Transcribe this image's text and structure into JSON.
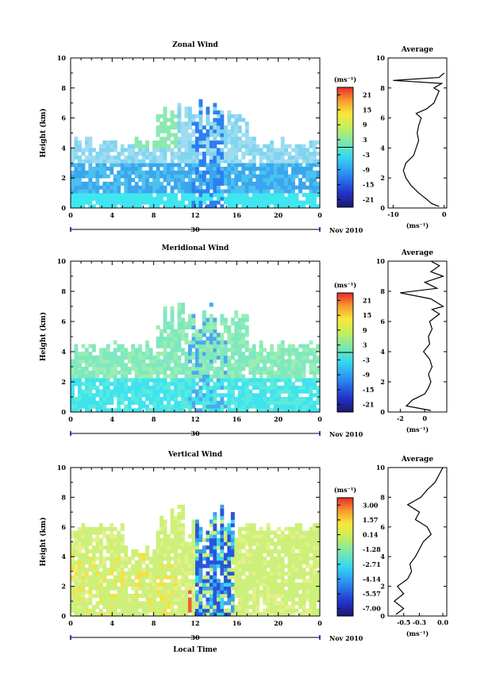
{
  "chart_data": [
    {
      "type": "heatmap",
      "title": "Zonal Wind",
      "ylabel": "Height (km)",
      "xlabel": "",
      "xlim": [
        0,
        24
      ],
      "ylim": [
        0,
        10
      ],
      "x_ticks": [
        "0",
        "4",
        "8",
        "12",
        "16",
        "20",
        "0"
      ],
      "y_ticks": [
        "0",
        "2",
        "4",
        "6",
        "8",
        "10"
      ],
      "date_label": "30",
      "month_label": "Nov 2010",
      "colorbar": {
        "unit": "(ms⁻¹)",
        "ticks": [
          "21",
          "15",
          "9",
          "3",
          "-3",
          "-9",
          "-15",
          "-21"
        ],
        "range": [
          -24,
          24
        ]
      },
      "average": {
        "title": "Average",
        "xlabel": "(ms⁻¹)",
        "x_ticks": [
          "-10",
          "0"
        ],
        "y_ticks": [
          "0",
          "2",
          "4",
          "6",
          "8",
          "10"
        ],
        "xlim": [
          -11,
          0.5
        ],
        "profile": [
          [
            0.1,
            -1
          ],
          [
            0.3,
            -2.5
          ],
          [
            0.6,
            -3.5
          ],
          [
            1.0,
            -5
          ],
          [
            1.5,
            -6.5
          ],
          [
            2.0,
            -7.5
          ],
          [
            2.5,
            -8
          ],
          [
            3.0,
            -7.5
          ],
          [
            3.5,
            -6
          ],
          [
            4.0,
            -5.5
          ],
          [
            4.5,
            -5
          ],
          [
            5.0,
            -5.3
          ],
          [
            5.5,
            -5
          ],
          [
            6.0,
            -4.5
          ],
          [
            6.3,
            -5.5
          ],
          [
            6.6,
            -3.5
          ],
          [
            7.0,
            -2
          ],
          [
            7.4,
            -1.5
          ],
          [
            7.8,
            -1
          ],
          [
            8.0,
            -2
          ],
          [
            8.3,
            -0.5
          ],
          [
            8.5,
            -10
          ],
          [
            8.7,
            -1
          ],
          [
            9.0,
            0
          ]
        ]
      }
    },
    {
      "type": "heatmap",
      "title": "Meridional Wind",
      "ylabel": "Height (km)",
      "xlabel": "",
      "xlim": [
        0,
        24
      ],
      "ylim": [
        0,
        10
      ],
      "x_ticks": [
        "0",
        "4",
        "8",
        "12",
        "16",
        "20",
        "0"
      ],
      "y_ticks": [
        "0",
        "2",
        "4",
        "6",
        "8",
        "10"
      ],
      "date_label": "30",
      "month_label": "Nov 2010",
      "colorbar": {
        "unit": "(ms⁻¹)",
        "ticks": [
          "21",
          "15",
          "9",
          "3",
          "-3",
          "-9",
          "-15",
          "-21"
        ],
        "range": [
          -24,
          24
        ]
      },
      "average": {
        "title": "Average",
        "xlabel": "(ms⁻¹)",
        "x_ticks": [
          "-2",
          "0"
        ],
        "y_ticks": [
          "0",
          "2",
          "4",
          "6",
          "8",
          "10"
        ],
        "xlim": [
          -3,
          1.8
        ],
        "profile": [
          [
            0.1,
            0.5
          ],
          [
            0.4,
            -1.5
          ],
          [
            0.8,
            -1
          ],
          [
            1.2,
            0
          ],
          [
            1.6,
            0.3
          ],
          [
            2.0,
            0.5
          ],
          [
            2.5,
            0.3
          ],
          [
            3.0,
            0.6
          ],
          [
            3.5,
            0.4
          ],
          [
            4.0,
            -0.1
          ],
          [
            4.5,
            0.4
          ],
          [
            5.0,
            0.3
          ],
          [
            5.5,
            0.6
          ],
          [
            6.0,
            0.4
          ],
          [
            6.5,
            1.2
          ],
          [
            6.8,
            0.6
          ],
          [
            7.0,
            1.5
          ],
          [
            7.5,
            0.5
          ],
          [
            7.9,
            -2
          ],
          [
            8.2,
            1
          ],
          [
            8.6,
            0
          ],
          [
            9.0,
            1.5
          ],
          [
            9.3,
            0.5
          ],
          [
            9.7,
            1.2
          ],
          [
            10.0,
            0.5
          ]
        ]
      }
    },
    {
      "type": "heatmap",
      "title": "Vertical Wind",
      "ylabel": "Height (km)",
      "xlabel": "Local Time",
      "xlim": [
        0,
        24
      ],
      "ylim": [
        0,
        10
      ],
      "x_ticks": [
        "0",
        "4",
        "8",
        "12",
        "16",
        "20",
        "0"
      ],
      "y_ticks": [
        "0",
        "2",
        "4",
        "6",
        "8",
        "10"
      ],
      "date_label": "30",
      "month_label": "Nov 2010",
      "colorbar": {
        "unit": "(ms⁻¹)",
        "ticks": [
          "3.00",
          "1.57",
          "0.14",
          "-1.28",
          "-2.71",
          "-4.14",
          "-5.57",
          "-7.00"
        ],
        "range": [
          -7.7,
          3.7
        ]
      },
      "average": {
        "title": "Average",
        "xlabel": "(ms⁻¹)",
        "x_ticks": [
          "-0.5",
          "-0.3",
          "0.0"
        ],
        "y_ticks": [
          "0",
          "2",
          "4",
          "6",
          "8",
          "10"
        ],
        "xlim": [
          -0.7,
          0.05
        ],
        "profile": [
          [
            0.1,
            -0.6
          ],
          [
            0.5,
            -0.5
          ],
          [
            1.0,
            -0.62
          ],
          [
            1.5,
            -0.5
          ],
          [
            2.0,
            -0.58
          ],
          [
            2.5,
            -0.45
          ],
          [
            3.0,
            -0.4
          ],
          [
            3.5,
            -0.42
          ],
          [
            4.0,
            -0.35
          ],
          [
            4.5,
            -0.3
          ],
          [
            5.0,
            -0.25
          ],
          [
            5.5,
            -0.15
          ],
          [
            6.0,
            -0.2
          ],
          [
            6.5,
            -0.35
          ],
          [
            7.0,
            -0.3
          ],
          [
            7.5,
            -0.45
          ],
          [
            8.0,
            -0.28
          ],
          [
            8.5,
            -0.2
          ],
          [
            9.0,
            -0.1
          ],
          [
            9.5,
            -0.05
          ],
          [
            10.0,
            0
          ]
        ]
      }
    }
  ]
}
